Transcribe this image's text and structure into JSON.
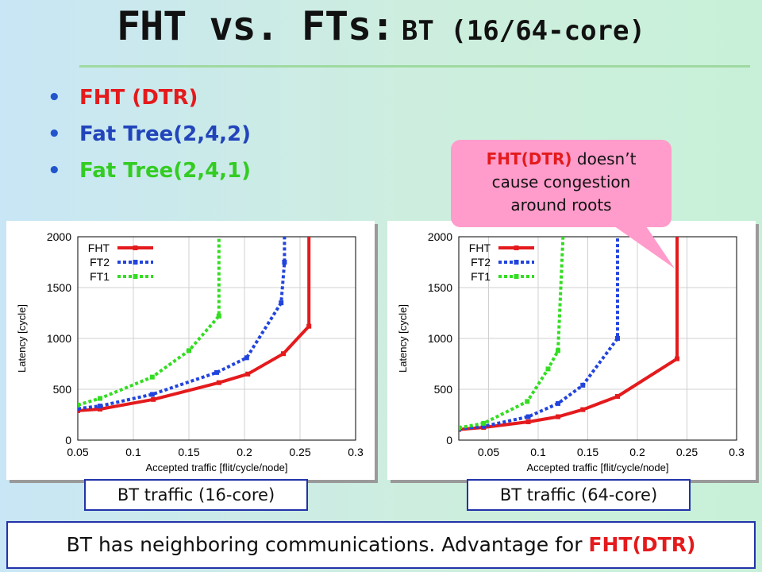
{
  "slide": {
    "title_main": "FHT vs. FTs:",
    "title_sub": "BT (16/64-core)",
    "bullets": [
      {
        "text": "FHT (DTR)",
        "color": "#e41a1c"
      },
      {
        "text": "Fat Tree(2,4,2)",
        "color": "#2244bb"
      },
      {
        "text": "Fat Tree(2,4,1)",
        "color": "#33cc22"
      }
    ],
    "callout": {
      "highlight": "FHT(DTR)",
      "line1_rest": " doesn’t",
      "line2": "cause congestion",
      "line3": "around roots"
    },
    "captions": [
      "BT traffic (16-core)",
      "BT traffic (64-core)"
    ],
    "footer": {
      "text": "BT has neighboring communications. Advantage for ",
      "highlight": "FHT(DTR)"
    }
  },
  "chart_data": [
    {
      "type": "line",
      "xlabel": "Accepted traffic [flit/cycle/node]",
      "ylabel": "Latency [cycle]",
      "xlim": [
        0.05,
        0.3
      ],
      "ylim": [
        0,
        2000
      ],
      "xticks": [
        "0.05",
        "0.1",
        "0.15",
        "0.2",
        "0.25",
        "0.3"
      ],
      "yticks": [
        "0",
        "500",
        "1000",
        "1500",
        "2000"
      ],
      "grid": true,
      "legend_position": "top-left",
      "series": [
        {
          "name": "FHT",
          "color": "#e41a1c",
          "style": "solid",
          "x": [
            0.05,
            0.07,
            0.118,
            0.177,
            0.203,
            0.235,
            0.258,
            0.258
          ],
          "y": [
            290,
            305,
            400,
            565,
            650,
            850,
            1120,
            2000
          ]
        },
        {
          "name": "FT2",
          "color": "#2244dd",
          "style": "dotted",
          "x": [
            0.05,
            0.07,
            0.117,
            0.175,
            0.202,
            0.233,
            0.236,
            0.236
          ],
          "y": [
            310,
            335,
            450,
            665,
            810,
            1350,
            1750,
            2000
          ]
        },
        {
          "name": "FT1",
          "color": "#33dd22",
          "style": "dotted",
          "x": [
            0.05,
            0.07,
            0.117,
            0.15,
            0.177,
            0.177
          ],
          "y": [
            345,
            410,
            620,
            880,
            1220,
            2000
          ]
        }
      ]
    },
    {
      "type": "line",
      "xlabel": "Accepted traffic [flit/cycle/node]",
      "ylabel": "Latency [cycle]",
      "xlim": [
        0.02,
        0.3
      ],
      "ylim": [
        0,
        2000
      ],
      "xticks": [
        "0.05",
        "0.1",
        "0.15",
        "0.2",
        "0.25",
        "0.3"
      ],
      "yticks": [
        "0",
        "500",
        "1000",
        "1500",
        "2000"
      ],
      "grid": true,
      "legend_position": "top-left",
      "series": [
        {
          "name": "FHT",
          "color": "#e41a1c",
          "style": "solid",
          "x": [
            0.02,
            0.045,
            0.09,
            0.12,
            0.145,
            0.18,
            0.24,
            0.24
          ],
          "y": [
            105,
            125,
            180,
            230,
            300,
            430,
            800,
            2000
          ]
        },
        {
          "name": "FT2",
          "color": "#2244dd",
          "style": "dotted",
          "x": [
            0.02,
            0.045,
            0.09,
            0.12,
            0.145,
            0.18,
            0.18
          ],
          "y": [
            110,
            135,
            230,
            360,
            540,
            1000,
            2000
          ]
        },
        {
          "name": "FT1",
          "color": "#33dd22",
          "style": "dotted",
          "x": [
            0.02,
            0.045,
            0.089,
            0.11,
            0.12,
            0.125
          ],
          "y": [
            120,
            165,
            380,
            700,
            880,
            2000
          ]
        }
      ]
    }
  ]
}
